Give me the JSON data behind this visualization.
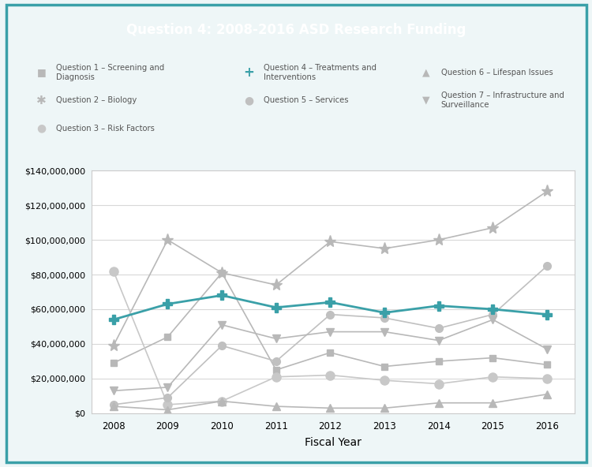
{
  "title": "Question 4: 2008-2016 ASD Research Funding",
  "title_bg_color": "#3aA0A8",
  "title_text_color": "#ffffff",
  "xlabel": "Fiscal Year",
  "years": [
    2008,
    2009,
    2010,
    2011,
    2012,
    2013,
    2014,
    2015,
    2016
  ],
  "series": {
    "Q1_Screening": {
      "label": "Question 1 – Screening and\nDiagnosis",
      "values": [
        29000000,
        44000000,
        81000000,
        25000000,
        35000000,
        27000000,
        30000000,
        32000000,
        28000000
      ],
      "color": "#b8b8b8",
      "marker": "s",
      "linewidth": 1.2,
      "markersize": 6
    },
    "Q2_Biology": {
      "label": "Question 2 – Biology",
      "values": [
        39000000,
        100000000,
        81000000,
        74000000,
        99000000,
        95000000,
        100000000,
        107000000,
        128000000
      ],
      "color": "#b8b8b8",
      "marker": "*",
      "linewidth": 1.2,
      "markersize": 11
    },
    "Q3_RiskFactors": {
      "label": "Question 3 – Risk Factors",
      "values": [
        82000000,
        5000000,
        7000000,
        21000000,
        22000000,
        19000000,
        17000000,
        21000000,
        20000000
      ],
      "color": "#c8c8c8",
      "marker": "o",
      "linewidth": 1.2,
      "markersize": 8
    },
    "Q4_Treatments": {
      "label": "Question 4 – Treatments and\nInterventions",
      "values": [
        54000000,
        63000000,
        68000000,
        61000000,
        64000000,
        58000000,
        62000000,
        60000000,
        57000000
      ],
      "color": "#3aA0A8",
      "marker": "P",
      "linewidth": 2.0,
      "markersize": 8
    },
    "Q5_Services": {
      "label": "Question 5 – Services",
      "values": [
        5000000,
        9000000,
        39000000,
        30000000,
        57000000,
        55000000,
        49000000,
        57000000,
        85000000
      ],
      "color": "#c0c0c0",
      "marker": "o",
      "linewidth": 1.2,
      "markersize": 7
    },
    "Q6_Lifespan": {
      "label": "Question 6 – Lifespan Issues",
      "values": [
        4000000,
        2000000,
        7000000,
        4000000,
        3000000,
        3000000,
        6000000,
        6000000,
        11000000
      ],
      "color": "#b8b8b8",
      "marker": "^",
      "linewidth": 1.2,
      "markersize": 7
    },
    "Q7_Infrastructure": {
      "label": "Question 7 – Infrastructure and\nSurveillance",
      "values": [
        13000000,
        15000000,
        51000000,
        43000000,
        47000000,
        47000000,
        42000000,
        54000000,
        37000000
      ],
      "color": "#b8b8b8",
      "marker": "v",
      "linewidth": 1.2,
      "markersize": 7
    }
  },
  "ylim": [
    0,
    140000000
  ],
  "yticks": [
    0,
    20000000,
    40000000,
    60000000,
    80000000,
    100000000,
    120000000,
    140000000
  ],
  "bg_color": "#ffffff",
  "outer_bg": "#eef6f7",
  "border_color": "#3aA0A8",
  "grid_color": "#d8d8d8"
}
